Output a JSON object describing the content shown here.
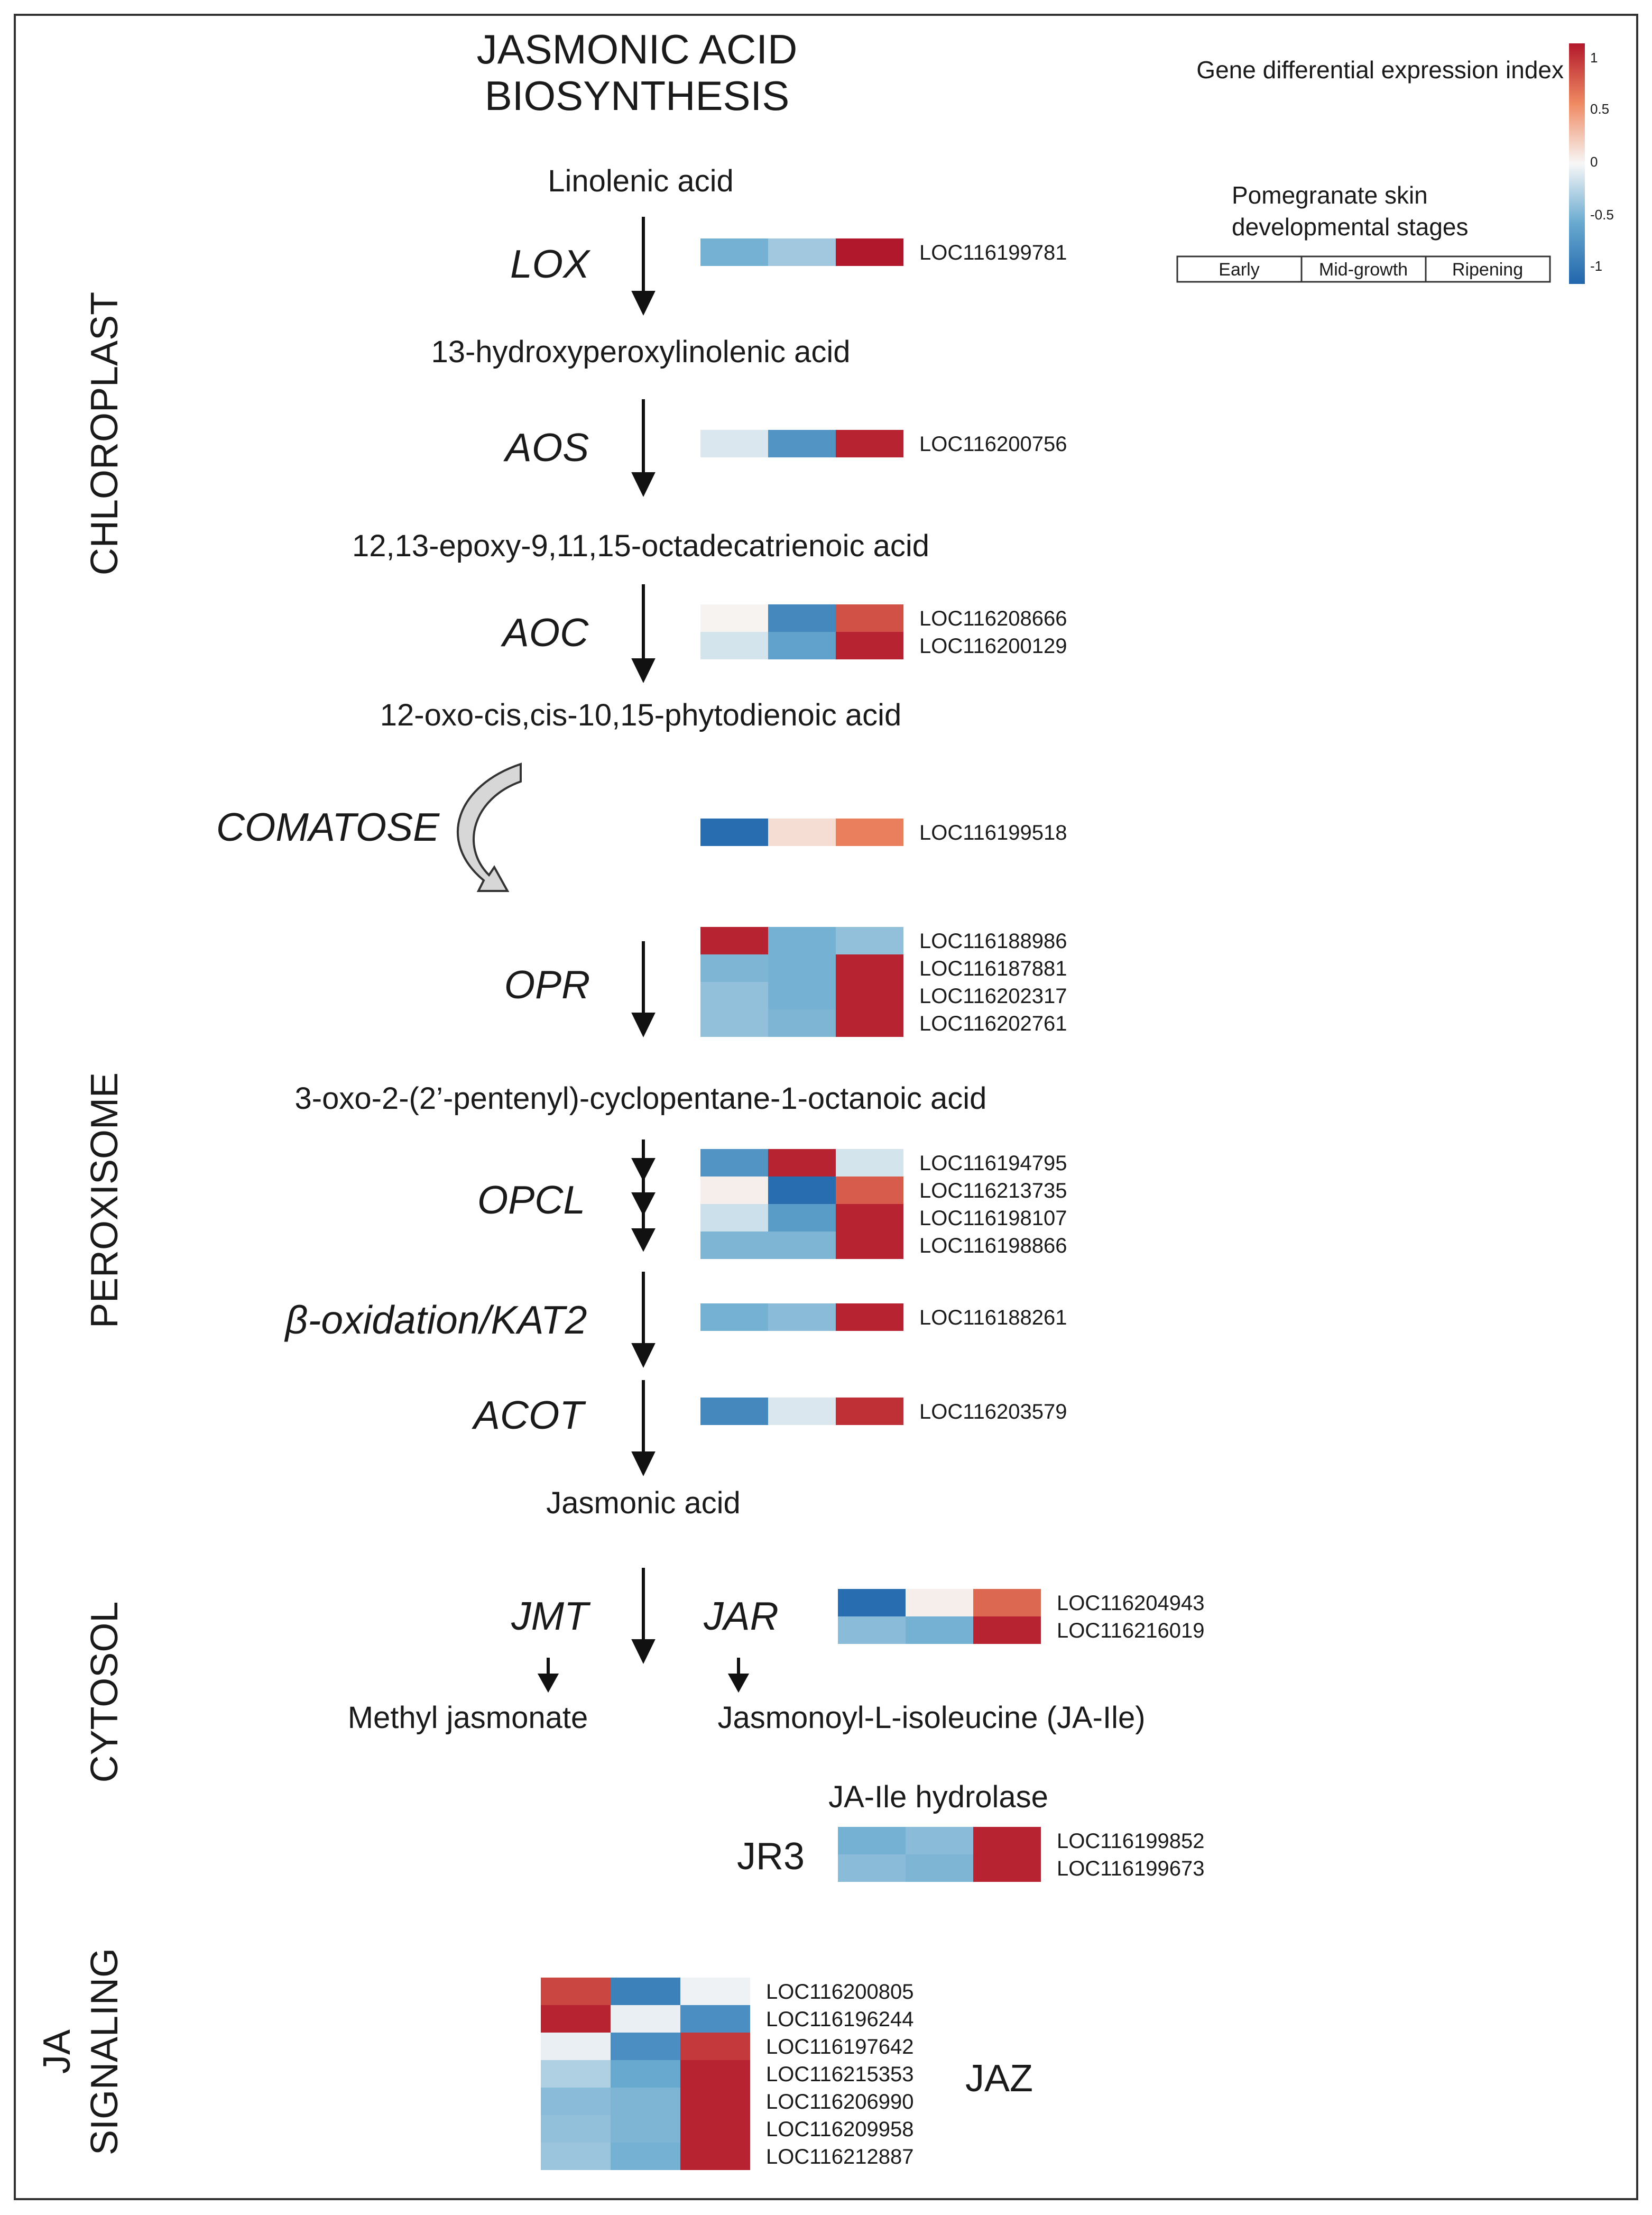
{
  "title": {
    "line1": "JASMONIC ACID",
    "line2": "BIOSYNTHESIS"
  },
  "compartments": {
    "chloroplast": "CHLOROPLAST",
    "peroxisome": "PEROXISOME",
    "cytosol": "CYTOSOL",
    "ja_signaling_1": "JA",
    "ja_signaling_2": "SIGNALING"
  },
  "metabolites": {
    "linolenic": "Linolenic acid",
    "hpot": "13-hydroxyperoxylinolenic acid",
    "eot": "12,13-epoxy-9,11,15-octadecatrienoic acid",
    "opda": "12-oxo-cis,cis-10,15-phytodienoic acid",
    "opc8": "3-oxo-2-(2’-pentenyl)-cyclopentane-1-octanoic acid",
    "ja": "Jasmonic acid",
    "meja": "Methyl jasmonate",
    "jaile": "Jasmonoyl-L-isoleucine (JA-Ile)",
    "jaile_hydrolase": "JA-Ile hydrolase"
  },
  "enzymes": {
    "lox": "LOX",
    "aos": "AOS",
    "aoc": "AOC",
    "comatose": "COMATOSE",
    "opr": "OPR",
    "opcl": "OPCL",
    "kat2": "β-oxidation/KAT2",
    "acot": "ACOT",
    "jmt": "JMT",
    "jar": "JAR",
    "jr3": "JR3",
    "jaz": "JAZ"
  },
  "legend": {
    "title": "Gene differential expression index",
    "stages_title_1": "Pomegranate skin",
    "stages_title_2": "developmental stages",
    "stages": [
      "Early",
      "Mid-growth",
      "Ripening"
    ],
    "ticks": [
      "1",
      "0.5",
      "0",
      "-0.5",
      "-1"
    ],
    "colors": {
      "high": "#b2182b",
      "mid": "#f7f7f7",
      "low": "#2166ac"
    }
  },
  "heatmaps": [
    {
      "id": "lox",
      "genes": [
        {
          "name": "LOC116199781",
          "values": [
            -0.45,
            -0.3,
            1.0
          ]
        }
      ]
    },
    {
      "id": "aos",
      "genes": [
        {
          "name": "LOC116200756",
          "values": [
            -0.1,
            -0.65,
            0.95
          ]
        }
      ]
    },
    {
      "id": "aoc",
      "genes": [
        {
          "name": "LOC116208666",
          "values": [
            0.02,
            -0.75,
            0.75
          ]
        },
        {
          "name": "LOC116200129",
          "values": [
            -0.12,
            -0.55,
            0.95
          ]
        }
      ]
    },
    {
      "id": "comatose",
      "genes": [
        {
          "name": "LOC116199518",
          "values": [
            -0.95,
            0.12,
            0.55
          ]
        }
      ]
    },
    {
      "id": "opr",
      "genes": [
        {
          "name": "LOC116188986",
          "values": [
            0.95,
            -0.45,
            -0.35
          ]
        },
        {
          "name": "LOC116187881",
          "values": [
            -0.42,
            -0.45,
            0.95
          ]
        },
        {
          "name": "LOC116202317",
          "values": [
            -0.35,
            -0.45,
            0.95
          ]
        },
        {
          "name": "LOC116202761",
          "values": [
            -0.35,
            -0.42,
            0.95
          ]
        }
      ]
    },
    {
      "id": "opcl",
      "genes": [
        {
          "name": "LOC116194795",
          "values": [
            -0.65,
            0.95,
            -0.12
          ]
        },
        {
          "name": "LOC116213735",
          "values": [
            0.04,
            -0.95,
            0.7
          ]
        },
        {
          "name": "LOC116198107",
          "values": [
            -0.15,
            -0.6,
            0.95
          ]
        },
        {
          "name": "LOC116198866",
          "values": [
            -0.42,
            -0.42,
            0.95
          ]
        }
      ]
    },
    {
      "id": "kat2",
      "genes": [
        {
          "name": "LOC116188261",
          "values": [
            -0.45,
            -0.38,
            0.95
          ]
        }
      ]
    },
    {
      "id": "acot",
      "genes": [
        {
          "name": "LOC116203579",
          "values": [
            -0.75,
            -0.1,
            0.9
          ]
        }
      ]
    },
    {
      "id": "jar",
      "genes": [
        {
          "name": "LOC116204943",
          "values": [
            -0.95,
            0.04,
            0.65
          ]
        },
        {
          "name": "LOC116216019",
          "values": [
            -0.38,
            -0.45,
            0.95
          ]
        }
      ]
    },
    {
      "id": "jr3",
      "genes": [
        {
          "name": "LOC116199852",
          "values": [
            -0.45,
            -0.38,
            0.95
          ]
        },
        {
          "name": "LOC116199673",
          "values": [
            -0.38,
            -0.42,
            0.95
          ]
        }
      ]
    },
    {
      "id": "jaz",
      "genes": [
        {
          "name": "LOC116200805",
          "values": [
            0.8,
            -0.8,
            -0.03
          ]
        },
        {
          "name": "LOC116196244",
          "values": [
            0.95,
            -0.05,
            -0.7
          ]
        },
        {
          "name": "LOC116197642",
          "values": [
            -0.05,
            -0.7,
            0.85
          ]
        },
        {
          "name": "LOC116215353",
          "values": [
            -0.25,
            -0.5,
            0.95
          ]
        },
        {
          "name": "LOC116206990",
          "values": [
            -0.38,
            -0.42,
            0.95
          ]
        },
        {
          "name": "LOC116209958",
          "values": [
            -0.35,
            -0.42,
            0.95
          ]
        },
        {
          "name": "LOC116212887",
          "values": [
            -0.32,
            -0.45,
            0.95
          ]
        }
      ]
    }
  ]
}
